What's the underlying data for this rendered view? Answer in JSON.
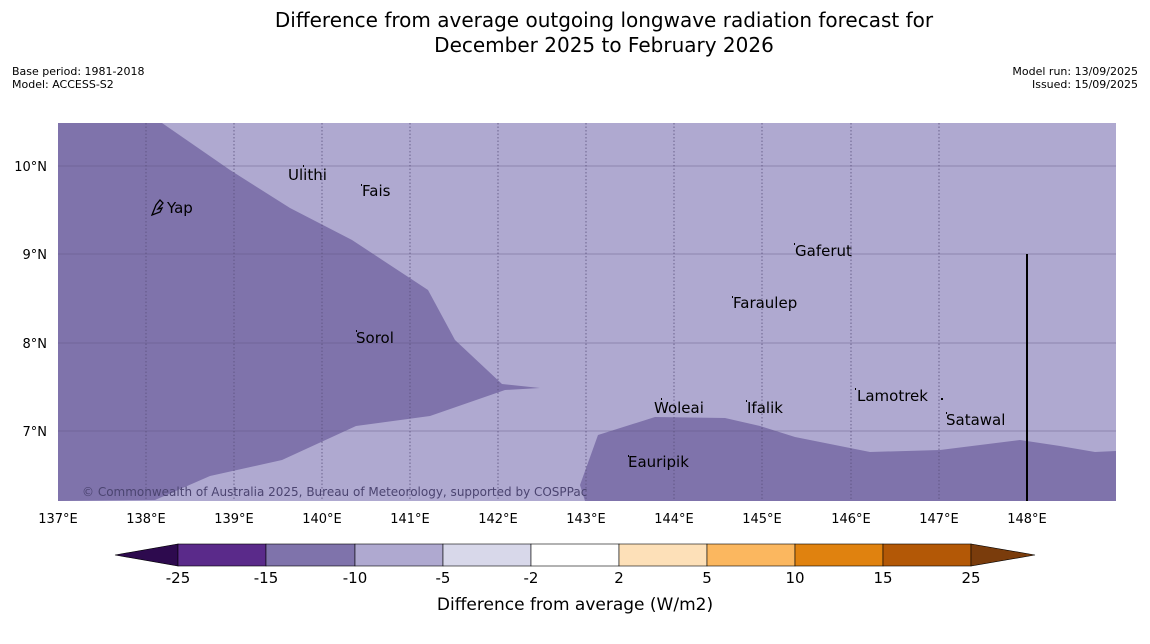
{
  "title_line1": "Difference from average outgoing longwave radiation forecast for",
  "title_line2": "December 2025 to February 2026",
  "meta_left": {
    "base_period": "Base period: 1981-2018",
    "model": "Model: ACCESS-S2"
  },
  "meta_right": {
    "model_run": "Model run: 13/09/2025",
    "issued": "Issued: 15/09/2025"
  },
  "copyright": "© Commonwealth of Australia 2025, Bureau of Meteorology, supported by COSPPac",
  "lon_labels": [
    "137°E",
    "138°E",
    "139°E",
    "140°E",
    "141°E",
    "142°E",
    "143°E",
    "144°E",
    "145°E",
    "146°E",
    "147°E",
    "148°E"
  ],
  "lat_labels": [
    "10°N",
    "9°N",
    "8°N",
    "7°N"
  ],
  "places": [
    {
      "name": "Yap"
    },
    {
      "name": "Ulithi"
    },
    {
      "name": "Fais"
    },
    {
      "name": "Gaferut"
    },
    {
      "name": "Faraulep"
    },
    {
      "name": "Sorol"
    },
    {
      "name": "Lamotrek"
    },
    {
      "name": "Woleai"
    },
    {
      "name": "Ifalik"
    },
    {
      "name": "Satawal"
    },
    {
      "name": "Eauripik"
    }
  ],
  "colors": {
    "background": "#afa9d0",
    "anomaly_-15_to_-10": "#7f73ab",
    "grid": "#5a507c"
  },
  "colorbar": {
    "label": "Difference from average (W/m2)",
    "ticks": [
      "-25",
      "-15",
      "-10",
      "-5",
      "-2",
      "2",
      "5",
      "10",
      "15",
      "25"
    ],
    "colors": [
      "#2d0a4e",
      "#5a2a8a",
      "#7f73ab",
      "#afa9d0",
      "#d8d8ea",
      "#ffffff",
      "#fde0b8",
      "#fbb75f",
      "#e0820f",
      "#b35806",
      "#7a3c0c"
    ]
  }
}
